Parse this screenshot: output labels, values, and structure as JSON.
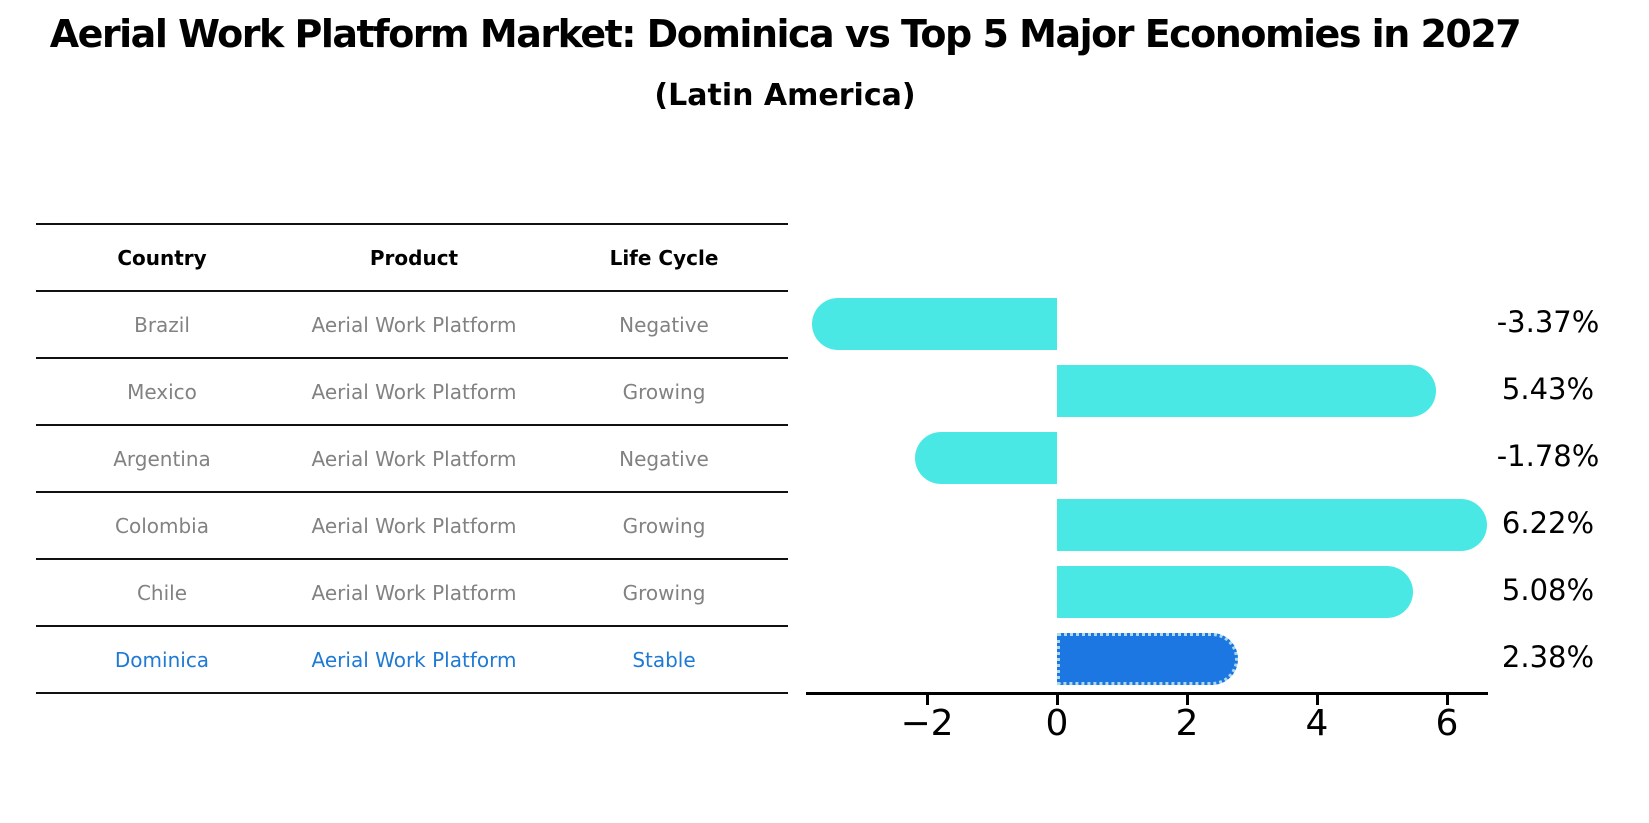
{
  "title": "Aerial Work Platform Market: Dominica vs Top 5 Major Economies in 2027",
  "subtitle": "(Latin America)",
  "table": {
    "headers": [
      "Country",
      "Product",
      "Life Cycle"
    ],
    "rows": [
      {
        "country": "Brazil",
        "product": "Aerial Work Platform",
        "life_cycle": "Negative",
        "highlight": false
      },
      {
        "country": "Mexico",
        "product": "Aerial Work Platform",
        "life_cycle": "Growing",
        "highlight": false
      },
      {
        "country": "Argentina",
        "product": "Aerial Work Platform",
        "life_cycle": "Negative",
        "highlight": false
      },
      {
        "country": "Colombia",
        "product": "Aerial Work Platform",
        "life_cycle": "Growing",
        "highlight": false
      },
      {
        "country": "Chile",
        "product": "Aerial Work Platform",
        "life_cycle": "Growing",
        "highlight": false
      },
      {
        "country": "Dominica",
        "product": "Aerial Work Platform",
        "life_cycle": "Stable",
        "highlight": true
      }
    ]
  },
  "chart_data": {
    "type": "bar",
    "orientation": "horizontal",
    "categories": [
      "Brazil",
      "Mexico",
      "Argentina",
      "Colombia",
      "Chile",
      "Dominica"
    ],
    "values": [
      -3.37,
      5.43,
      -1.78,
      6.22,
      5.08,
      2.38
    ],
    "value_labels": [
      "-3.37%",
      "5.43%",
      "-1.78%",
      "6.22%",
      "5.08%",
      "2.38%"
    ],
    "xticks": [
      -2,
      0,
      2,
      4,
      6
    ],
    "xtick_labels": [
      "−2",
      "0",
      "2",
      "4",
      "6"
    ],
    "xlim": [
      -3.85,
      6.7
    ],
    "grid": false,
    "legend": "none",
    "bar_color": "#4AE8E4",
    "highlight_index": 5,
    "highlight_color": "#1C77E3",
    "highlight_edge_color": "#ADD8E6",
    "highlight_edge_style": "dotted"
  },
  "colors": {
    "text_primary": "#000000",
    "text_muted": "#828282",
    "highlight_text": "#1E7AD4",
    "axis": "#000000"
  }
}
